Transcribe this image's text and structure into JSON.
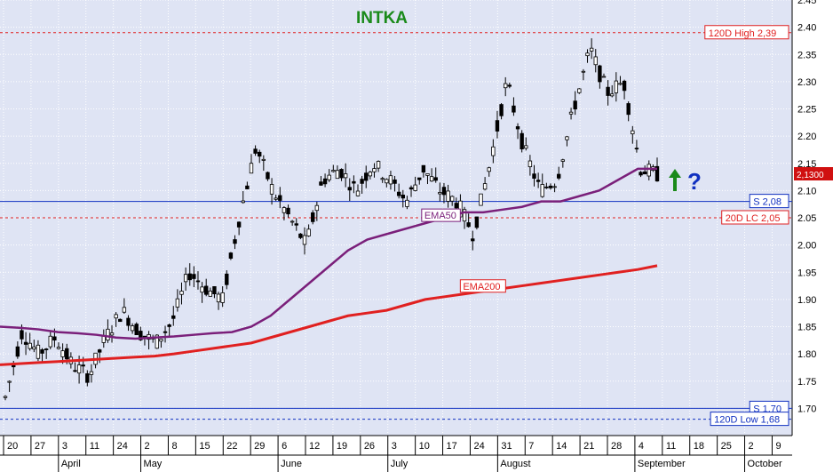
{
  "chart_data": {
    "type": "candlestick",
    "title": "INTKA",
    "title_color": "#1a8a1a",
    "ylim": [
      1.65,
      2.45
    ],
    "y_ticks": [
      "1.70",
      "1.75",
      "1.80",
      "1.85",
      "1.90",
      "1.95",
      "2.00",
      "2.05",
      "2.10",
      "2.15",
      "2.20",
      "2.25",
      "2.30",
      "2.35",
      "2.40",
      "2.45"
    ],
    "x_day_labels": [
      "20",
      "27",
      "3",
      "11",
      "24",
      "2",
      "8",
      "15",
      "22",
      "29",
      "6",
      "12",
      "19",
      "26",
      "3",
      "10",
      "17",
      "24",
      "31",
      "7",
      "14",
      "21",
      "28",
      "4",
      "11",
      "18",
      "25",
      "2",
      "9"
    ],
    "x_month_labels": [
      "April",
      "May",
      "June",
      "July",
      "August",
      "September",
      "October"
    ],
    "current_price_label": "2,1300",
    "series": [
      {
        "name": "EMA50",
        "color": "#7a1f7a",
        "values": [
          1.85,
          1.848,
          1.845,
          1.84,
          1.838,
          1.835,
          1.83,
          1.828,
          1.83,
          1.832,
          1.835,
          1.838,
          1.84,
          1.85,
          1.87,
          1.9,
          1.93,
          1.96,
          1.99,
          2.01,
          2.02,
          2.03,
          2.04,
          2.05,
          2.06,
          2.06,
          2.065,
          2.07,
          2.08,
          2.08,
          2.09,
          2.1,
          2.12,
          2.14,
          2.14
        ]
      },
      {
        "name": "EMA200",
        "color": "#e02020",
        "values": [
          1.78,
          1.782,
          1.784,
          1.786,
          1.788,
          1.79,
          1.792,
          1.794,
          1.796,
          1.8,
          1.805,
          1.81,
          1.815,
          1.82,
          1.83,
          1.84,
          1.85,
          1.86,
          1.87,
          1.875,
          1.88,
          1.89,
          1.9,
          1.905,
          1.91,
          1.915,
          1.92,
          1.925,
          1.93,
          1.935,
          1.94,
          1.945,
          1.95,
          1.955,
          1.962
        ]
      }
    ],
    "annotations": [
      {
        "label": "120D High 2,39",
        "value": 2.39,
        "color": "#e02020"
      },
      {
        "label": "S 2,08",
        "value": 2.08,
        "color": "#1030c0"
      },
      {
        "label": "20D LC 2,05",
        "value": 2.05,
        "color": "#e02020"
      },
      {
        "label": "S 1,70",
        "value": 1.7,
        "color": "#1030c0"
      },
      {
        "label": "120D Low 1,68",
        "value": 1.68,
        "color": "#1030c0"
      }
    ],
    "question_mark": "?",
    "arrow": "up",
    "grid": true
  }
}
